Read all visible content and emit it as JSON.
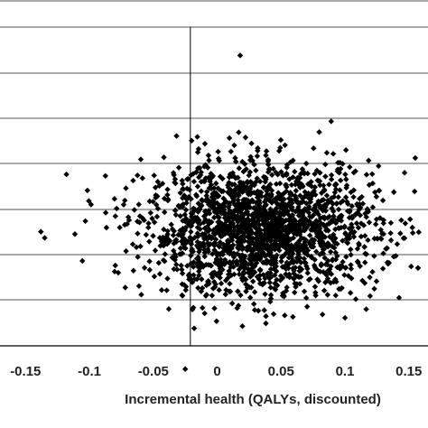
{
  "chart_data": {
    "type": "scatter",
    "title": "",
    "xlabel": "Incremental health (QALYs, discounted)",
    "ylabel": "",
    "xlim": [
      -0.17,
      0.165
    ],
    "x_ticks": [
      "-0.15",
      "-0.1",
      "-0.05",
      "0",
      "0.05",
      "0.1",
      "0.15"
    ],
    "x_tick_values": [
      -0.15,
      -0.1,
      -0.05,
      0,
      0.05,
      0.1,
      0.15
    ],
    "grid": "horizontal",
    "marker": "diamond",
    "marker_color": "#000000",
    "point_count_estimate": 2000,
    "cloud": {
      "center_x": 0.035,
      "center_y": 0.43,
      "spread_x": 0.045,
      "spread_y": 0.16
    },
    "reference_line_x": -0.021,
    "notable_points": [
      {
        "x": -0.135,
        "y": 0.39
      },
      {
        "x": -0.138,
        "y": 0.42
      },
      {
        "x": -0.118,
        "y": 0.7
      },
      {
        "x": -0.025,
        "y": -0.25
      },
      {
        "x": 0.018,
        "y": 1.28
      },
      {
        "x": 0.155,
        "y": 0.78
      },
      {
        "x": 0.1,
        "y": 0.0
      }
    ]
  }
}
